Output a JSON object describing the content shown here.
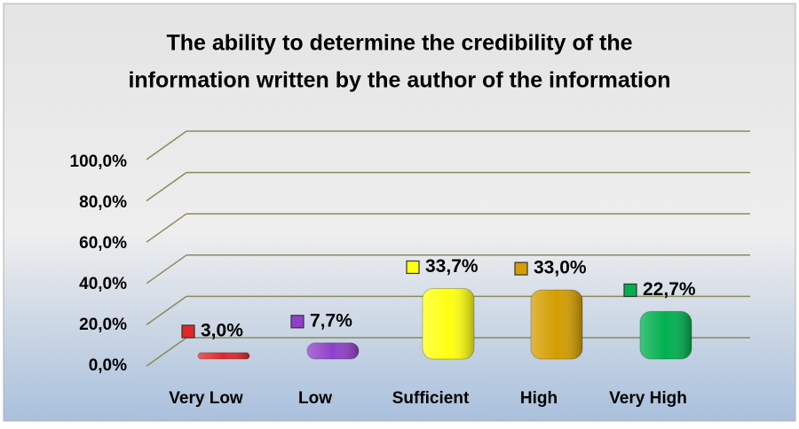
{
  "chart_data": {
    "type": "bar3d",
    "title": [
      "The ability to determine the credibility of the",
      "information written by the author of the information"
    ],
    "categories": [
      "Very Low",
      "Low",
      "Sufficient",
      "High",
      "Very High"
    ],
    "values": [
      3.0,
      7.7,
      33.7,
      33.0,
      22.7
    ],
    "value_labels": [
      "3,0%",
      "7,7%",
      "33,7%",
      "33,0%",
      "22,7%"
    ],
    "colors": [
      "#e02828",
      "#9040c8",
      "#ffff10",
      "#d49e00",
      "#00b050"
    ],
    "ylim": [
      0,
      100
    ],
    "yticks": [
      {
        "value": 0,
        "label": "0,0%"
      },
      {
        "value": 20,
        "label": "20,0%"
      },
      {
        "value": 40,
        "label": "40,0%"
      },
      {
        "value": 60,
        "label": "60,0%"
      },
      {
        "value": 80,
        "label": "80,0%"
      },
      {
        "value": 100,
        "label": "100,0%"
      }
    ],
    "grid": true
  }
}
